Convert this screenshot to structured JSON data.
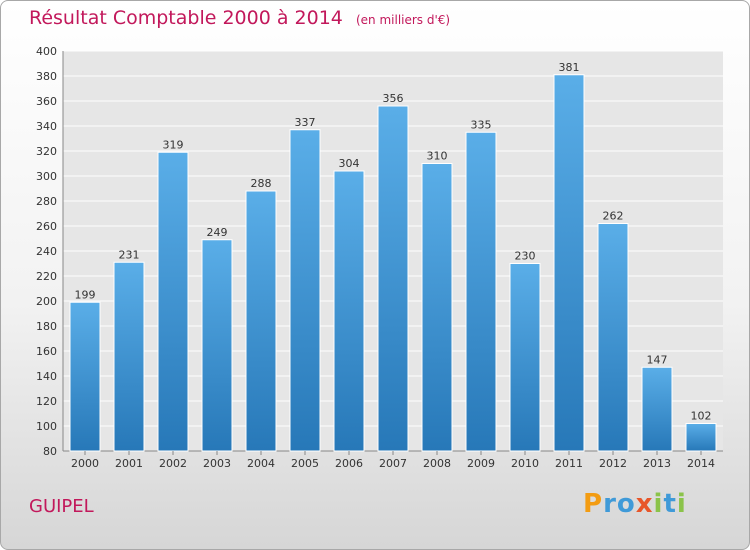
{
  "title": "Résultat Comptable 2000 à 2014",
  "unit": "(en milliers d'€)",
  "city": "GUIPEL",
  "logo": {
    "letters": [
      "P",
      "r",
      "o",
      "x",
      "i",
      "t",
      "i"
    ],
    "colors": [
      "#f39c12",
      "#3f9ad8",
      "#3f9ad8",
      "#e8562a",
      "#8bc34a",
      "#3f9ad8",
      "#8bc34a"
    ]
  },
  "colors": {
    "bar_top": "#5aaee8",
    "bar_bottom": "#2778b8",
    "title": "#c2185b"
  },
  "chart_data": {
    "type": "bar",
    "categories": [
      "2000",
      "2001",
      "2002",
      "2003",
      "2004",
      "2005",
      "2006",
      "2007",
      "2008",
      "2009",
      "2010",
      "2011",
      "2012",
      "2013",
      "2014"
    ],
    "values": [
      199,
      231,
      319,
      249,
      288,
      337,
      304,
      356,
      310,
      335,
      230,
      381,
      262,
      147,
      102
    ],
    "ylim": [
      80,
      400
    ],
    "yticks": [
      80,
      100,
      120,
      140,
      160,
      180,
      200,
      220,
      240,
      260,
      280,
      300,
      320,
      340,
      360,
      380,
      400
    ],
    "grid": true,
    "legend": "none"
  }
}
